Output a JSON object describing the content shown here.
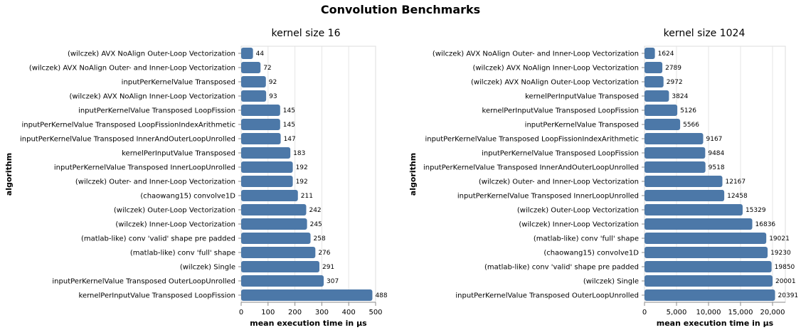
{
  "title": "Convolution Benchmarks",
  "bar_color": "#4c78a8",
  "chart_data": [
    {
      "type": "bar",
      "orientation": "horizontal",
      "title": "kernel size 16",
      "xlabel": "mean execution time in µs",
      "ylabel": "algorithm",
      "xlim": [
        0,
        500
      ],
      "xticks": [
        "0",
        "100",
        "200",
        "300",
        "400",
        "500"
      ],
      "xtick_values": [
        0,
        100,
        200,
        300,
        400,
        500
      ],
      "grid": true,
      "categories": [
        "(wilczek) AVX NoAlign Outer-Loop Vectorization",
        "(wilczek) AVX NoAlign Outer- and Inner-Loop Vectorization",
        "inputPerKernelValue Transposed",
        "(wilczek) AVX NoAlign Inner-Loop Vectorization",
        "inputPerKernelValue Transposed LoopFission",
        "inputPerKernelValue Transposed LoopFissionIndexArithmetic",
        "inputPerKernelValue Transposed InnerAndOuterLoopUnrolled",
        "kernelPerInputValue Transposed",
        "inputPerKernelValue Transposed InnerLoopUnrolled",
        "(wilczek) Outer- and Inner-Loop Vectorization",
        "(chaowang15) convolve1D",
        "(wilczek) Outer-Loop Vectorization",
        "(wilczek) Inner-Loop Vectorization",
        "(matlab-like) conv 'valid' shape pre padded",
        "(matlab-like) conv 'full' shape",
        "(wilczek) Single",
        "inputPerKernelValue Transposed OuterLoopUnrolled",
        "kernelPerInputValue Transposed LoopFission"
      ],
      "values": [
        44,
        72,
        92,
        93,
        145,
        145,
        147,
        183,
        192,
        192,
        211,
        242,
        245,
        258,
        276,
        291,
        307,
        488
      ],
      "value_labels": [
        "44",
        "72",
        "92",
        "93",
        "145",
        "145",
        "147",
        "183",
        "192",
        "192",
        "211",
        "242",
        "245",
        "258",
        "276",
        "291",
        "307",
        "488"
      ]
    },
    {
      "type": "bar",
      "orientation": "horizontal",
      "title": "kernel size 1024",
      "xlabel": "mean execution time in µs",
      "ylabel": "algorithm",
      "xlim": [
        0,
        22000
      ],
      "xticks": [
        "0",
        "5,000",
        "10,000",
        "15,000",
        "20,000"
      ],
      "xtick_values": [
        0,
        5000,
        10000,
        15000,
        20000
      ],
      "grid": true,
      "categories": [
        "(wilczek) AVX NoAlign Outer- and Inner-Loop Vectorization",
        "(wilczek) AVX NoAlign Inner-Loop Vectorization",
        "(wilczek) AVX NoAlign Outer-Loop Vectorization",
        "kernelPerInputValue Transposed",
        "kernelPerInputValue Transposed LoopFission",
        "inputPerKernelValue Transposed",
        "inputPerKernelValue Transposed LoopFissionIndexArithmetic",
        "inputPerKernelValue Transposed LoopFission",
        "inputPerKernelValue Transposed InnerAndOuterLoopUnrolled",
        "(wilczek) Outer- and Inner-Loop Vectorization",
        "inputPerKernelValue Transposed InnerLoopUnrolled",
        "(wilczek) Outer-Loop Vectorization",
        "(wilczek) Inner-Loop Vectorization",
        "(matlab-like) conv 'full' shape",
        "(chaowang15) convolve1D",
        "(matlab-like) conv 'valid' shape pre padded",
        "(wilczek) Single",
        "inputPerKernelValue Transposed OuterLoopUnrolled"
      ],
      "values": [
        1624,
        2789,
        2972,
        3824,
        5126,
        5566,
        9167,
        9484,
        9518,
        12167,
        12458,
        15329,
        16836,
        19021,
        19230,
        19850,
        20001,
        20391
      ],
      "value_labels": [
        "1624",
        "2789",
        "2972",
        "3824",
        "5126",
        "5566",
        "9167",
        "9484",
        "9518",
        "12167",
        "12458",
        "15329",
        "16836",
        "19021",
        "19230",
        "19850",
        "20001",
        "20391"
      ]
    }
  ]
}
